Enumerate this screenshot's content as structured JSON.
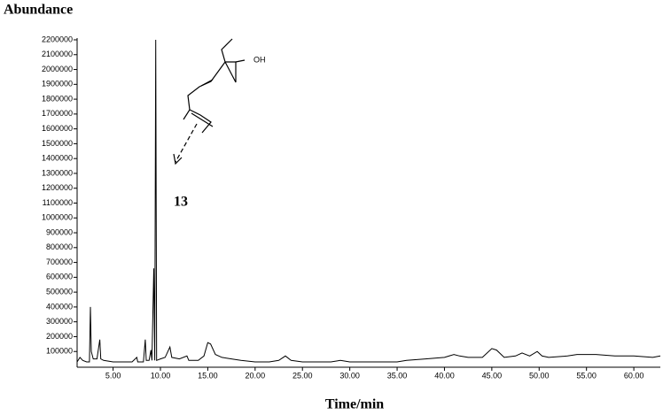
{
  "chart_data": {
    "type": "line",
    "title": "Abundance",
    "x_label": "Time/min",
    "annotations": [
      "13",
      "OH"
    ],
    "x": [
      1.2,
      1.5,
      1.8,
      2.2,
      2.5,
      2.6,
      2.7,
      2.9,
      3.3,
      3.6,
      3.7,
      4.0,
      5.0,
      6.0,
      7.0,
      7.5,
      7.6,
      8.2,
      8.4,
      8.5,
      8.8,
      9.0,
      9.1,
      9.3,
      9.4,
      9.5,
      9.6,
      10.0,
      10.5,
      11.0,
      11.2,
      12.0,
      12.8,
      13.0,
      14.0,
      14.6,
      15.0,
      15.3,
      15.8,
      16.5,
      17.5,
      18.5,
      20.0,
      21.5,
      22.5,
      23.2,
      23.8,
      25.0,
      27.0,
      28.0,
      29.0,
      30.0,
      32.0,
      34.0,
      35.0,
      36.0,
      38.0,
      40.0,
      41.0,
      41.6,
      42.5,
      44.0,
      45.0,
      45.5,
      46.3,
      47.5,
      48.2,
      49.0,
      49.8,
      50.3,
      51.0,
      53.0,
      54.0,
      56.0,
      58.0,
      60.0,
      62.0,
      62.8
    ],
    "series": [
      {
        "color": "#000000",
        "values": [
          30000,
          60000,
          40000,
          30000,
          30000,
          400000,
          100000,
          50000,
          50000,
          180000,
          50000,
          40000,
          30000,
          30000,
          30000,
          60000,
          30000,
          30000,
          180000,
          40000,
          40000,
          110000,
          40000,
          660000,
          40000,
          2200000,
          40000,
          50000,
          60000,
          130000,
          60000,
          50000,
          70000,
          40000,
          40000,
          70000,
          160000,
          150000,
          80000,
          60000,
          50000,
          40000,
          30000,
          30000,
          40000,
          70000,
          40000,
          30000,
          30000,
          30000,
          40000,
          30000,
          30000,
          30000,
          30000,
          40000,
          50000,
          60000,
          80000,
          70000,
          60000,
          60000,
          120000,
          110000,
          60000,
          70000,
          90000,
          70000,
          100000,
          70000,
          60000,
          70000,
          80000,
          80000,
          70000,
          70000,
          60000,
          70000
        ]
      }
    ],
    "xlim": [
      1.2,
      62.8
    ],
    "ylim": [
      0,
      2200000
    ],
    "xticks": [
      {
        "value": 5,
        "label": "5.00"
      },
      {
        "value": 10,
        "label": "10.00"
      },
      {
        "value": 15,
        "label": "15.00"
      },
      {
        "value": 20,
        "label": "20.00"
      },
      {
        "value": 25,
        "label": "25.00"
      },
      {
        "value": 30,
        "label": "30.00"
      },
      {
        "value": 35,
        "label": "35.00"
      },
      {
        "value": 40,
        "label": "40.00"
      },
      {
        "value": 45,
        "label": "45.00"
      },
      {
        "value": 50,
        "label": "50.00"
      },
      {
        "value": 55,
        "label": "55.00"
      },
      {
        "value": 60,
        "label": "60.00"
      }
    ],
    "yticks": [
      100000,
      200000,
      300000,
      400000,
      500000,
      600000,
      700000,
      800000,
      900000,
      1000000,
      1100000,
      1200000,
      1300000,
      1400000,
      1500000,
      1600000,
      1700000,
      1800000,
      1900000,
      2000000,
      2100000,
      2200000
    ]
  }
}
